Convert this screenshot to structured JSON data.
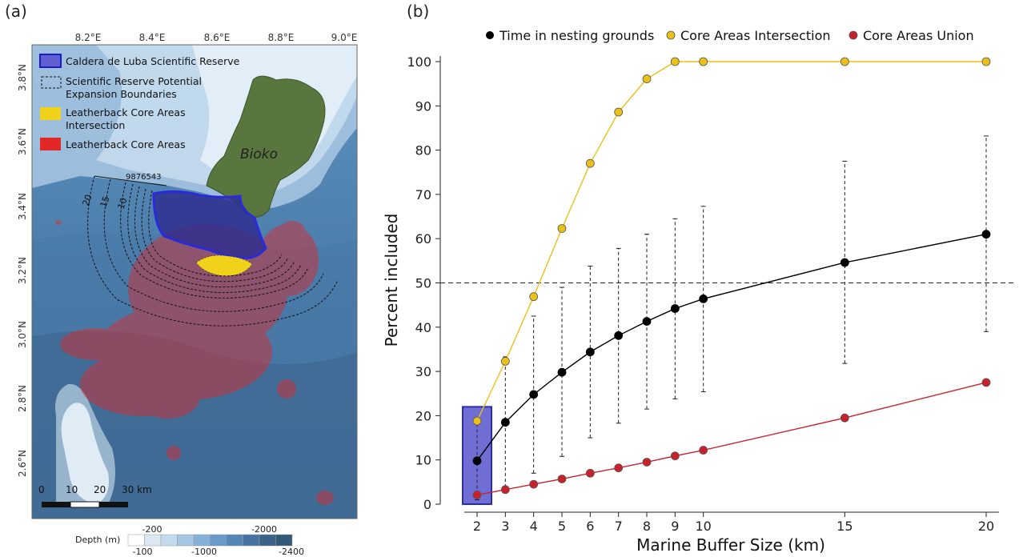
{
  "panel_a": {
    "label": "(a)",
    "lon_ticks": [
      "8.2°E",
      "8.4°E",
      "8.6°E",
      "8.8°E",
      "9.0°E"
    ],
    "lat_ticks": [
      "3.8°N",
      "3.6°N",
      "3.4°N",
      "3.2°N",
      "3.0°N",
      "2.8°N",
      "2.6°N"
    ],
    "legend": [
      {
        "label": "Caldera de Luba Scientific Reserve",
        "color": "#3b3bd1"
      },
      {
        "label": "Scientific Reserve Potential",
        "label2": "Expansion Boundaries",
        "color": "#000000"
      },
      {
        "label": "Leatherback Core Areas",
        "label2": "Intersection",
        "color": "#f1d21b"
      },
      {
        "label": "Leatherback Core Areas",
        "color": "#e32626"
      }
    ],
    "island_label": "Bioko",
    "buffer_labels_top": "9876543",
    "buffer_labels_side": [
      "20",
      "15",
      "10"
    ],
    "scale_bar": {
      "labels": [
        "0",
        "10",
        "20",
        "30 km"
      ]
    },
    "depth_legend": {
      "title": "Depth (m)",
      "top_labels": [
        "-200",
        "-2000"
      ],
      "bottom_labels": [
        "-100",
        "-1000",
        "-2400"
      ],
      "colors": [
        "#ffffff",
        "#dbe8f3",
        "#c3d9ec",
        "#a6c6e2",
        "#86b1d6",
        "#6a9bc8",
        "#5486b6",
        "#46739f",
        "#3b6388",
        "#345878"
      ]
    }
  },
  "panel_b": {
    "label": "(b)",
    "legend": [
      {
        "label": "Time in nesting grounds",
        "color": "#000000"
      },
      {
        "label": "Core Areas Intersection",
        "color": "#e9c118"
      },
      {
        "label": "Core Areas Union",
        "color": "#c8212c"
      }
    ]
  },
  "chart_data": {
    "type": "line",
    "title": "",
    "xlabel": "Marine Buffer Size (km)",
    "ylabel": "Percent included",
    "xlim": [
      1.5,
      20.8
    ],
    "ylim": [
      0,
      100
    ],
    "x_ticks": [
      2,
      3,
      4,
      5,
      6,
      7,
      8,
      9,
      10,
      15,
      20
    ],
    "y_ticks": [
      0,
      10,
      20,
      30,
      40,
      50,
      60,
      70,
      80,
      90,
      100
    ],
    "reference_line": {
      "y": 50,
      "style": "dashed"
    },
    "x": [
      2,
      3,
      4,
      5,
      6,
      7,
      8,
      9,
      10,
      15,
      20
    ],
    "series": [
      {
        "name": "Time in nesting grounds",
        "color": "#000000",
        "values": [
          9.8,
          18.5,
          24.8,
          29.8,
          34.4,
          38.1,
          41.3,
          44.2,
          46.4,
          54.6,
          61
        ],
        "error_low": [
          1,
          3.8,
          7,
          10.8,
          15,
          18.3,
          21.5,
          23.8,
          25.4,
          31.8,
          39
        ],
        "error_high": [
          19,
          33.3,
          42.5,
          49,
          53.8,
          57.8,
          61,
          64.5,
          67.3,
          77.5,
          83.2
        ]
      },
      {
        "name": "Core Areas Intersection",
        "color": "#e9c118",
        "values": [
          18.8,
          32.3,
          46.9,
          62.3,
          77,
          88.6,
          96.1,
          100,
          100,
          100,
          100
        ]
      },
      {
        "name": "Core Areas Union",
        "color": "#c8212c",
        "values": [
          2.1,
          3.3,
          4.5,
          5.7,
          7,
          8.2,
          9.5,
          10.9,
          12.2,
          19.5,
          27.5
        ]
      }
    ],
    "highlight_box": {
      "x": 2,
      "y_range": [
        0,
        22
      ],
      "color": "#3b3bbd"
    },
    "legend_position": "top"
  }
}
